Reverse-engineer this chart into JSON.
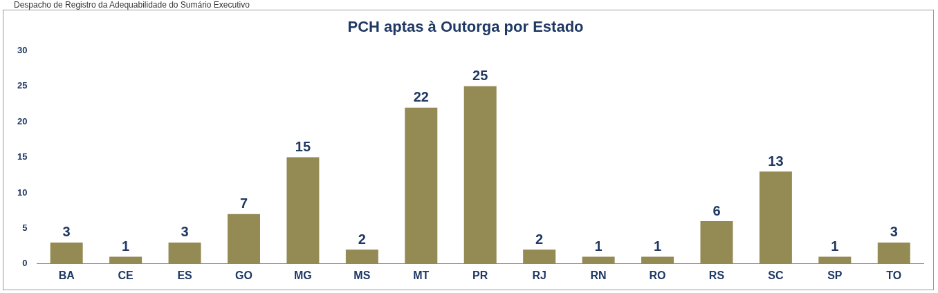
{
  "chart_data": {
    "type": "bar",
    "title": "PCH aptas à Outorga por Estado",
    "annotations": [
      "Despacho de Registro da Adequabilidade do Sumário Executivo"
    ],
    "categories": [
      "BA",
      "CE",
      "ES",
      "GO",
      "MG",
      "MS",
      "MT",
      "PR",
      "RJ",
      "RN",
      "RO",
      "RS",
      "SC",
      "SP",
      "TO"
    ],
    "values": [
      3,
      1,
      3,
      7,
      15,
      2,
      22,
      25,
      2,
      1,
      1,
      6,
      13,
      1,
      3
    ],
    "color": "#948a54",
    "ylim": [
      0,
      30
    ],
    "yticks": [
      0,
      5,
      10,
      15,
      20,
      25,
      30
    ],
    "grid": false,
    "legend": false,
    "data_labels": true
  }
}
